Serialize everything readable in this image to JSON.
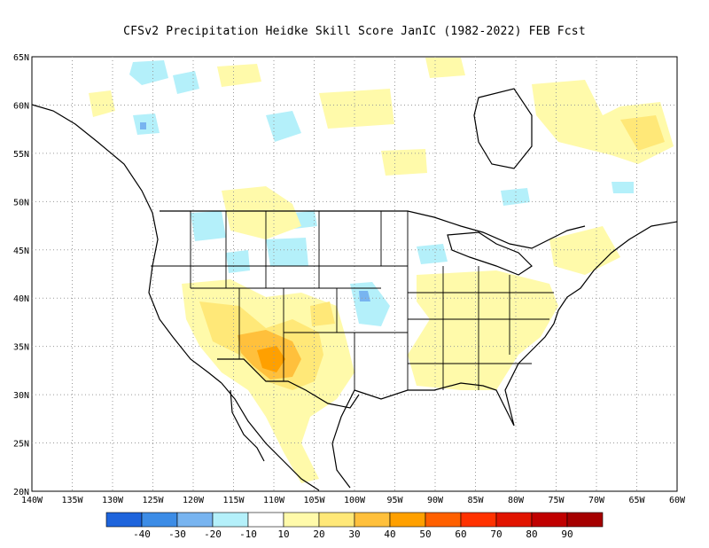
{
  "title": "CFSv2  Precipitation Heidke Skill Score JanIC (1982-2022) FEB Fcst",
  "map": {
    "lon_labels": [
      "140W",
      "135W",
      "130W",
      "125W",
      "120W",
      "115W",
      "110W",
      "105W",
      "100W",
      "95W",
      "90W",
      "85W",
      "80W",
      "75W",
      "70W",
      "65W",
      "60W"
    ],
    "lat_labels": [
      "65N",
      "60N",
      "55N",
      "50N",
      "45N",
      "40N",
      "35N",
      "30N",
      "25N",
      "20N"
    ],
    "lon_range": [
      -140,
      -60
    ],
    "lat_range": [
      20,
      65
    ],
    "grid": "dotted"
  },
  "colorbar": {
    "colors": [
      "#1e64dc",
      "#3c8ce6",
      "#78b4f0",
      "#b4f0fa",
      "#ffffff",
      "#fffaaa",
      "#ffe878",
      "#ffc03c",
      "#ffa000",
      "#ff6000",
      "#ff3200",
      "#e11400",
      "#c00000",
      "#a50000"
    ],
    "labels": [
      "-40",
      "-30",
      "-20",
      "-10",
      "10",
      "20",
      "30",
      "40",
      "50",
      "60",
      "70",
      "80",
      "90"
    ]
  }
}
